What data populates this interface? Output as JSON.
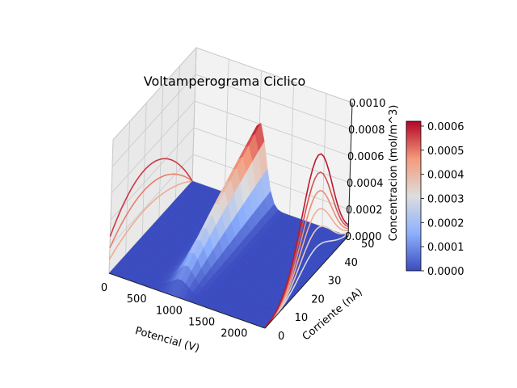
{
  "chart_data": {
    "type": "surface3d",
    "title": "Voltamperograma Ciclico",
    "xlabel": "Potencial (V)",
    "ylabel": "Corriente (nA)",
    "zlabel": "Concentracion (mol/m^3)",
    "xlim": [
      0,
      2400
    ],
    "ylim": [
      0,
      50
    ],
    "zlim": [
      0,
      0.001
    ],
    "x_ticks": [
      "0",
      "500",
      "1000",
      "1500",
      "2000"
    ],
    "x_tick_values": [
      0,
      500,
      1000,
      1500,
      2000
    ],
    "y_ticks": [
      "0",
      "10",
      "20",
      "30",
      "40",
      "50"
    ],
    "y_tick_values": [
      0,
      10,
      20,
      30,
      40,
      50
    ],
    "z_ticks": [
      "0.0000",
      "0.0002",
      "0.0004",
      "0.0006",
      "0.0008",
      "0.0010"
    ],
    "z_tick_values": [
      0,
      0.0002,
      0.0004,
      0.0006,
      0.0008,
      0.001
    ],
    "colormap": "coolwarm",
    "colorbar": {
      "range": [
        0,
        0.00062
      ],
      "ticks": [
        "0.0000",
        "0.0001",
        "0.0002",
        "0.0003",
        "0.0004",
        "0.0005",
        "0.0006"
      ],
      "tick_values": [
        0,
        0.0001,
        0.0002,
        0.0003,
        0.0004,
        0.0005,
        0.0006
      ]
    },
    "surface_ridge": {
      "peak_x": 1000,
      "peak_y_end": 50,
      "peak_z_max": 0.00062,
      "width_x": 160
    },
    "contour_projections": [
      "x-wall",
      "y-wall",
      "floor"
    ],
    "grid": true,
    "view": "3d-perspective"
  }
}
